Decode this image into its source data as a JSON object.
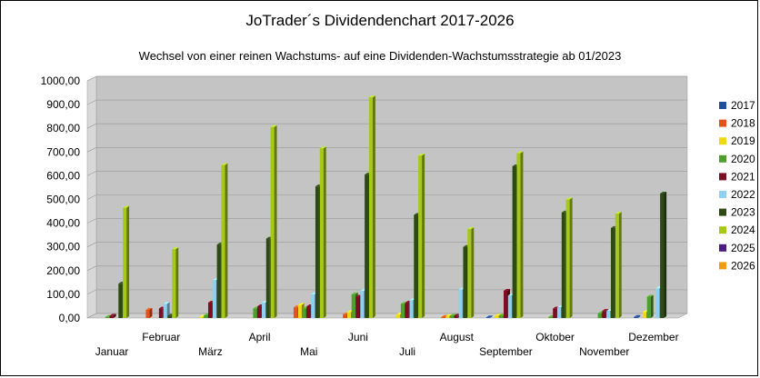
{
  "chart_data": {
    "type": "bar",
    "title": "JoTrader´s Dividendenchart 2017-2026",
    "subtitle": "Wechsel von einer reinen Wachstums- auf eine Dividenden-Wachstumsstrategie ab 01/2023",
    "xlabel": "",
    "ylabel": "",
    "ylim": [
      0,
      1000
    ],
    "yticks": [
      "0,00",
      "100,00",
      "200,00",
      "300,00",
      "400,00",
      "500,00",
      "600,00",
      "700,00",
      "800,00",
      "900,00",
      "1000,00"
    ],
    "grid": true,
    "legend_position": "right",
    "categories": [
      "Januar",
      "Februar",
      "März",
      "April",
      "Mai",
      "Juni",
      "Juli",
      "August",
      "September",
      "Oktober",
      "November",
      "Dezember"
    ],
    "series": [
      {
        "name": "2017",
        "color": "#1f4e9c",
        "values": [
          0,
          0,
          0,
          0,
          0,
          0,
          0,
          0,
          3,
          0,
          0,
          5
        ]
      },
      {
        "name": "2018",
        "color": "#e8501a",
        "values": [
          0,
          35,
          0,
          0,
          45,
          15,
          0,
          5,
          0,
          0,
          0,
          0
        ]
      },
      {
        "name": "2019",
        "color": "#f0d818",
        "values": [
          0,
          0,
          5,
          0,
          55,
          25,
          15,
          8,
          10,
          0,
          0,
          25
        ]
      },
      {
        "name": "2020",
        "color": "#4fa02a",
        "values": [
          5,
          0,
          12,
          40,
          40,
          100,
          60,
          10,
          10,
          5,
          20,
          90
        ]
      },
      {
        "name": "2021",
        "color": "#7b0e22",
        "values": [
          10,
          40,
          65,
          50,
          50,
          90,
          65,
          10,
          115,
          40,
          30,
          0
        ]
      },
      {
        "name": "2022",
        "color": "#8fd0f0",
        "values": [
          0,
          60,
          160,
          65,
          100,
          115,
          75,
          120,
          95,
          45,
          30,
          125
        ]
      },
      {
        "name": "2023",
        "color": "#2e4a14",
        "values": [
          145,
          10,
          310,
          335,
          555,
          605,
          435,
          300,
          640,
          445,
          380,
          525
        ]
      },
      {
        "name": "2024",
        "color": "#a6c818",
        "values": [
          465,
          290,
          645,
          805,
          715,
          930,
          685,
          375,
          695,
          500,
          440,
          0
        ]
      },
      {
        "name": "2025",
        "color": "#4b1a82",
        "values": [
          0,
          0,
          0,
          0,
          0,
          0,
          0,
          0,
          0,
          0,
          0,
          0
        ]
      },
      {
        "name": "2026",
        "color": "#f49a18",
        "values": [
          0,
          0,
          0,
          0,
          0,
          0,
          0,
          0,
          0,
          0,
          0,
          0
        ]
      }
    ]
  }
}
